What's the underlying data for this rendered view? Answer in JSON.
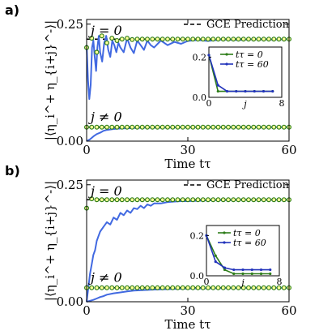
{
  "chart_data": [
    {
      "panel_label": "a)",
      "type": "line",
      "xlabel": "Time tτ",
      "ylabel": "|⟨η_i^+ η_{i+j}^-⟩|",
      "xlim": [
        0,
        60
      ],
      "ylim": [
        0,
        0.26
      ],
      "xticks": [
        "0",
        "30",
        "60"
      ],
      "yticks": [
        "0.00",
        "0.25"
      ],
      "annotations": [
        "j = 0",
        "j ≠ 0"
      ],
      "legend": "GCE Prediction",
      "legend_position": "top-right",
      "gce_levels": [
        0.218,
        0.03
      ],
      "series": [
        {
          "name": "j = 0",
          "color": "#4169e1",
          "x": [
            0,
            0.4,
            0.8,
            1.2,
            1.6,
            2,
            2.4,
            2.8,
            3.2,
            3.6,
            4,
            4.6,
            5.2,
            5.8,
            6.4,
            7,
            7.6,
            8.2,
            8.8,
            9.4,
            10,
            11,
            12,
            13,
            14,
            15,
            16,
            17,
            18,
            19,
            20,
            22,
            24,
            26,
            28,
            30,
            33,
            36,
            40,
            45,
            50,
            55,
            60
          ],
          "y": [
            0.205,
            0.13,
            0.09,
            0.12,
            0.2,
            0.215,
            0.18,
            0.15,
            0.2,
            0.225,
            0.19,
            0.17,
            0.21,
            0.225,
            0.195,
            0.18,
            0.215,
            0.205,
            0.19,
            0.21,
            0.2,
            0.19,
            0.22,
            0.2,
            0.188,
            0.215,
            0.205,
            0.195,
            0.215,
            0.205,
            0.2,
            0.215,
            0.205,
            0.212,
            0.208,
            0.214,
            0.216,
            0.214,
            0.217,
            0.216,
            0.218,
            0.217,
            0.218
          ]
        },
        {
          "name": "j ≠ 0",
          "color": "#4169e1",
          "x": [
            0,
            1,
            2,
            3,
            4,
            5,
            6,
            8,
            10,
            14,
            18,
            24,
            30,
            40,
            50,
            60
          ],
          "y": [
            0.0,
            0.004,
            0.01,
            0.015,
            0.018,
            0.022,
            0.024,
            0.026,
            0.027,
            0.028,
            0.029,
            0.029,
            0.03,
            0.03,
            0.03,
            0.03
          ]
        }
      ],
      "markers": {
        "color": "#2e7d1a",
        "j0": {
          "x": [
            0,
            1.5,
            3,
            4.5,
            6,
            7.5,
            9,
            10.5,
            12,
            13.5,
            15,
            16.5,
            18,
            19.5,
            21,
            22.5,
            24,
            25.5,
            27,
            28.5,
            30,
            31.5,
            33,
            34.5,
            36,
            37.5,
            39,
            40.5,
            42,
            43.5,
            45,
            46.5,
            48,
            49.5,
            51,
            52.5,
            54,
            55.5,
            57,
            58.5,
            60
          ],
          "y": [
            0.2,
            0.22,
            0.19,
            0.225,
            0.21,
            0.22,
            0.215,
            0.218,
            0.22,
            0.217,
            0.218,
            0.218,
            0.218,
            0.218,
            0.218,
            0.218,
            0.218,
            0.218,
            0.218,
            0.218,
            0.218,
            0.218,
            0.218,
            0.218,
            0.218,
            0.218,
            0.218,
            0.218,
            0.218,
            0.218,
            0.218,
            0.218,
            0.218,
            0.218,
            0.218,
            0.218,
            0.218,
            0.218,
            0.218,
            0.218,
            0.218
          ]
        },
        "jn0": {
          "x": [
            0,
            1.5,
            3,
            4.5,
            6,
            7.5,
            9,
            10.5,
            12,
            13.5,
            15,
            16.5,
            18,
            19.5,
            21,
            22.5,
            24,
            25.5,
            27,
            28.5,
            30,
            31.5,
            33,
            34.5,
            36,
            37.5,
            39,
            40.5,
            42,
            43.5,
            45,
            46.5,
            48,
            49.5,
            51,
            52.5,
            54,
            55.5,
            57,
            58.5,
            60
          ],
          "y": [
            0.03,
            0.03,
            0.03,
            0.03,
            0.03,
            0.03,
            0.03,
            0.03,
            0.03,
            0.03,
            0.03,
            0.03,
            0.03,
            0.03,
            0.03,
            0.03,
            0.03,
            0.03,
            0.03,
            0.03,
            0.03,
            0.03,
            0.03,
            0.03,
            0.03,
            0.03,
            0.03,
            0.03,
            0.03,
            0.03,
            0.03,
            0.03,
            0.03,
            0.03,
            0.03,
            0.03,
            0.03,
            0.03,
            0.03,
            0.03,
            0.03
          ]
        }
      },
      "inset": {
        "xlabel": "j",
        "xlim": [
          0,
          8
        ],
        "ylim": [
          0,
          0.25
        ],
        "xticks": [
          "0",
          "8"
        ],
        "yticks": [
          "0.0",
          "0.2"
        ],
        "legend": [
          "tτ = 0",
          "tτ = 60"
        ],
        "series": [
          {
            "name": "tτ = 0",
            "color": "#2e7d1a",
            "x": [
              0,
              1,
              2,
              3,
              4,
              5,
              6,
              7
            ],
            "y": [
              0.21,
              0.03,
              0.03,
              0.03,
              0.03,
              0.03,
              0.03,
              0.03
            ]
          },
          {
            "name": "tτ = 60",
            "color": "#2233bb",
            "x": [
              0,
              1,
              2,
              3,
              4,
              5,
              6,
              7
            ],
            "y": [
              0.21,
              0.06,
              0.03,
              0.03,
              0.03,
              0.03,
              0.03,
              0.03
            ]
          }
        ]
      }
    },
    {
      "panel_label": "b)",
      "type": "line",
      "xlabel": "Time tτ",
      "ylabel": "|⟨η_i^+ η_{i+j}^-⟩|",
      "xlim": [
        0,
        60
      ],
      "ylim": [
        0,
        0.26
      ],
      "xticks": [
        "0",
        "30",
        "60"
      ],
      "yticks": [
        "0.00",
        "0.25"
      ],
      "annotations": [
        "j = 0",
        "j ≠ 0"
      ],
      "legend": "GCE Prediction",
      "legend_position": "top-right",
      "gce_levels": [
        0.218,
        0.03
      ],
      "series": [
        {
          "name": "j = 0",
          "color": "#4169e1",
          "x": [
            0,
            0.5,
            1,
            1.5,
            2,
            2.5,
            3,
            3.5,
            4,
            5,
            6,
            7,
            8,
            9,
            10,
            11,
            12,
            13,
            14,
            15,
            16,
            17,
            18,
            19,
            20,
            22,
            24,
            26,
            28,
            30,
            34,
            38,
            42,
            46,
            50,
            55,
            60
          ],
          "y": [
            0.0,
            0.03,
            0.06,
            0.08,
            0.1,
            0.11,
            0.13,
            0.14,
            0.15,
            0.16,
            0.17,
            0.165,
            0.18,
            0.175,
            0.19,
            0.185,
            0.195,
            0.19,
            0.2,
            0.198,
            0.205,
            0.2,
            0.208,
            0.205,
            0.21,
            0.21,
            0.213,
            0.214,
            0.215,
            0.215,
            0.216,
            0.217,
            0.217,
            0.218,
            0.218,
            0.218,
            0.218
          ]
        },
        {
          "name": "j ≠ 0",
          "color": "#4169e1",
          "x": [
            0,
            1,
            2,
            3,
            4,
            5,
            6,
            8,
            10,
            12,
            14,
            17,
            20,
            25,
            30,
            40,
            50,
            60
          ],
          "y": [
            0.0,
            0.002,
            0.004,
            0.007,
            0.01,
            0.012,
            0.015,
            0.018,
            0.02,
            0.022,
            0.024,
            0.025,
            0.026,
            0.027,
            0.028,
            0.029,
            0.03,
            0.03
          ]
        }
      ],
      "markers": {
        "color": "#2e7d1a",
        "j0": {
          "x": [
            0,
            1.5,
            3,
            4.5,
            6,
            7.5,
            9,
            10.5,
            12,
            13.5,
            15,
            16.5,
            18,
            19.5,
            21,
            22.5,
            24,
            25.5,
            27,
            28.5,
            30,
            31.5,
            33,
            34.5,
            36,
            37.5,
            39,
            40.5,
            42,
            43.5,
            45,
            46.5,
            48,
            49.5,
            51,
            52.5,
            54,
            55.5,
            57,
            58.5,
            60
          ],
          "y": [
            0.2,
            0.22,
            0.218,
            0.218,
            0.218,
            0.218,
            0.218,
            0.218,
            0.218,
            0.218,
            0.218,
            0.218,
            0.218,
            0.218,
            0.218,
            0.218,
            0.218,
            0.218,
            0.218,
            0.218,
            0.218,
            0.218,
            0.218,
            0.218,
            0.218,
            0.218,
            0.218,
            0.218,
            0.218,
            0.218,
            0.218,
            0.218,
            0.218,
            0.218,
            0.218,
            0.218,
            0.218,
            0.218,
            0.218,
            0.218,
            0.218
          ]
        },
        "jn0": {
          "x": [
            0,
            1.5,
            3,
            4.5,
            6,
            7.5,
            9,
            10.5,
            12,
            13.5,
            15,
            16.5,
            18,
            19.5,
            21,
            22.5,
            24,
            25.5,
            27,
            28.5,
            30,
            31.5,
            33,
            34.5,
            36,
            37.5,
            39,
            40.5,
            42,
            43.5,
            45,
            46.5,
            48,
            49.5,
            51,
            52.5,
            54,
            55.5,
            57,
            58.5,
            60
          ],
          "y": [
            0.03,
            0.03,
            0.03,
            0.03,
            0.03,
            0.03,
            0.03,
            0.03,
            0.03,
            0.03,
            0.03,
            0.03,
            0.03,
            0.03,
            0.03,
            0.03,
            0.03,
            0.03,
            0.03,
            0.03,
            0.03,
            0.03,
            0.03,
            0.03,
            0.03,
            0.03,
            0.03,
            0.03,
            0.03,
            0.03,
            0.03,
            0.03,
            0.03,
            0.03,
            0.03,
            0.03,
            0.03,
            0.03,
            0.03,
            0.03,
            0.03
          ]
        }
      },
      "inset": {
        "xlabel": "j",
        "xlim": [
          0,
          8
        ],
        "ylim": [
          0,
          0.25
        ],
        "xticks": [
          "0",
          "8"
        ],
        "yticks": [
          "0.0",
          "0.2"
        ],
        "legend": [
          "tτ = 0",
          "tτ = 60"
        ],
        "series": [
          {
            "name": "tτ = 0",
            "color": "#2e7d1a",
            "x": [
              0,
              1,
              2,
              3,
              4,
              5,
              6,
              7
            ],
            "y": [
              0.2,
              0.1,
              0.03,
              0.01,
              0.01,
              0.01,
              0.01,
              0.01
            ]
          },
          {
            "name": "tτ = 60",
            "color": "#2233bb",
            "x": [
              0,
              1,
              2,
              3,
              4,
              5,
              6,
              7
            ],
            "y": [
              0.2,
              0.07,
              0.04,
              0.03,
              0.03,
              0.03,
              0.03,
              0.03
            ]
          }
        ]
      }
    }
  ]
}
